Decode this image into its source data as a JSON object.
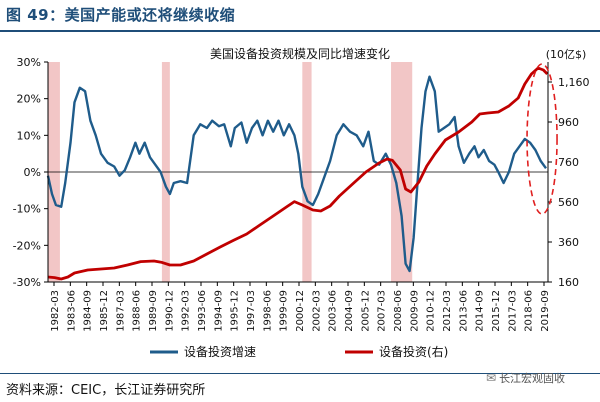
{
  "figure": {
    "title": "图 49：美国产能或还将继续收缩",
    "source": "资料来源：CEIC，长江证券研究所",
    "watermark": "长江宏观固收",
    "watermark_icon": "wechat-icon"
  },
  "chart_data": {
    "type": "line",
    "title": "美国设备投资规模及同比增速变化",
    "x_tick_labels": [
      "1982-03",
      "1983-06",
      "1984-09",
      "1985-12",
      "1987-03",
      "1988-06",
      "1989-09",
      "1990-12",
      "1992-03",
      "1993-06",
      "1994-09",
      "1995-12",
      "1997-03",
      "1998-06",
      "1999-09",
      "2000-12",
      "2002-03",
      "2003-06",
      "2004-09",
      "2005-12",
      "2007-03",
      "2008-06",
      "2009-09",
      "2010-12",
      "2012-03",
      "2013-06",
      "2014-09",
      "2015-12",
      "2017-03",
      "2018-06",
      "2019-09"
    ],
    "x_range": [
      1982.0,
      2019.75
    ],
    "left_axis": {
      "ticks": [
        "-30%",
        "-20%",
        "-10%",
        "0%",
        "10%",
        "20%",
        "30%"
      ],
      "values": [
        -30,
        -20,
        -10,
        0,
        10,
        20,
        30
      ],
      "range": [
        -30,
        30
      ]
    },
    "right_axis": {
      "unit": "(10亿$)",
      "ticks": [
        "160",
        "360",
        "560",
        "760",
        "960",
        "1,160"
      ],
      "values": [
        160,
        360,
        560,
        760,
        960,
        1160
      ],
      "range": [
        160,
        1260
      ]
    },
    "recession_bands": [
      [
        1982.0,
        1982.9
      ],
      [
        1990.6,
        1991.2
      ],
      [
        2001.2,
        2001.9
      ],
      [
        2007.9,
        2009.5
      ]
    ],
    "series": [
      {
        "name": "设备投资增速",
        "color": "#1f5c8b",
        "axis": "left",
        "points": [
          [
            1982.0,
            -1
          ],
          [
            1982.3,
            -6
          ],
          [
            1982.6,
            -9
          ],
          [
            1983.0,
            -9.5
          ],
          [
            1983.3,
            -3
          ],
          [
            1983.7,
            8
          ],
          [
            1984.0,
            19
          ],
          [
            1984.4,
            23
          ],
          [
            1984.8,
            22
          ],
          [
            1985.2,
            14
          ],
          [
            1985.6,
            10
          ],
          [
            1986.0,
            5
          ],
          [
            1986.5,
            2.5
          ],
          [
            1987.0,
            1.5
          ],
          [
            1987.4,
            -1
          ],
          [
            1987.8,
            0.5
          ],
          [
            1988.2,
            4
          ],
          [
            1988.6,
            8
          ],
          [
            1988.9,
            5
          ],
          [
            1989.3,
            8
          ],
          [
            1989.7,
            4
          ],
          [
            1990.1,
            2
          ],
          [
            1990.5,
            0
          ],
          [
            1990.9,
            -4
          ],
          [
            1991.2,
            -6
          ],
          [
            1991.5,
            -3
          ],
          [
            1992.0,
            -2.5
          ],
          [
            1992.5,
            -3
          ],
          [
            1993.0,
            10
          ],
          [
            1993.5,
            13
          ],
          [
            1994.0,
            12
          ],
          [
            1994.4,
            14
          ],
          [
            1994.9,
            12.5
          ],
          [
            1995.3,
            13
          ],
          [
            1995.8,
            7
          ],
          [
            1996.1,
            12
          ],
          [
            1996.6,
            13.5
          ],
          [
            1997.0,
            8
          ],
          [
            1997.4,
            12
          ],
          [
            1997.8,
            14
          ],
          [
            1998.2,
            10
          ],
          [
            1998.6,
            14
          ],
          [
            1999.0,
            11
          ],
          [
            1999.4,
            14
          ],
          [
            1999.8,
            10
          ],
          [
            2000.2,
            13
          ],
          [
            2000.6,
            10
          ],
          [
            2000.9,
            5
          ],
          [
            2001.2,
            -4
          ],
          [
            2001.6,
            -8
          ],
          [
            2002.0,
            -9
          ],
          [
            2002.4,
            -6
          ],
          [
            2002.8,
            -2
          ],
          [
            2003.3,
            3
          ],
          [
            2003.8,
            10
          ],
          [
            2004.3,
            13
          ],
          [
            2004.8,
            11
          ],
          [
            2005.3,
            10
          ],
          [
            2005.8,
            7
          ],
          [
            2006.2,
            11
          ],
          [
            2006.6,
            3
          ],
          [
            2007.0,
            2
          ],
          [
            2007.5,
            5
          ],
          [
            2007.9,
            2
          ],
          [
            2008.3,
            -3
          ],
          [
            2008.7,
            -12
          ],
          [
            2009.0,
            -25
          ],
          [
            2009.3,
            -27
          ],
          [
            2009.6,
            -18
          ],
          [
            2009.9,
            -3
          ],
          [
            2010.2,
            12
          ],
          [
            2010.5,
            22
          ],
          [
            2010.8,
            26
          ],
          [
            2011.2,
            22
          ],
          [
            2011.5,
            11
          ],
          [
            2011.9,
            12
          ],
          [
            2012.3,
            13
          ],
          [
            2012.7,
            15
          ],
          [
            2013.0,
            7
          ],
          [
            2013.4,
            2.5
          ],
          [
            2013.8,
            5
          ],
          [
            2014.2,
            7
          ],
          [
            2014.5,
            4
          ],
          [
            2014.9,
            6
          ],
          [
            2015.3,
            3
          ],
          [
            2015.7,
            2
          ],
          [
            2016.0,
            0
          ],
          [
            2016.4,
            -3
          ],
          [
            2016.8,
            0
          ],
          [
            2017.2,
            5
          ],
          [
            2017.6,
            7
          ],
          [
            2018.0,
            9
          ],
          [
            2018.4,
            8
          ],
          [
            2018.8,
            6
          ],
          [
            2019.2,
            3
          ],
          [
            2019.6,
            1
          ]
        ]
      },
      {
        "name": "设备投资(右)",
        "color": "#c00000",
        "axis": "right",
        "points": [
          [
            1982.0,
            185
          ],
          [
            1982.5,
            182
          ],
          [
            1983.0,
            175
          ],
          [
            1983.5,
            185
          ],
          [
            1984.0,
            205
          ],
          [
            1985.0,
            220
          ],
          [
            1986.0,
            225
          ],
          [
            1987.0,
            230
          ],
          [
            1988.0,
            245
          ],
          [
            1989.0,
            262
          ],
          [
            1990.0,
            265
          ],
          [
            1990.6,
            258
          ],
          [
            1991.2,
            245
          ],
          [
            1992.0,
            245
          ],
          [
            1993.0,
            265
          ],
          [
            1994.0,
            300
          ],
          [
            1995.0,
            335
          ],
          [
            1996.0,
            368
          ],
          [
            1997.0,
            400
          ],
          [
            1998.0,
            445
          ],
          [
            1999.0,
            490
          ],
          [
            2000.0,
            535
          ],
          [
            2000.6,
            562
          ],
          [
            2001.2,
            545
          ],
          [
            2002.0,
            520
          ],
          [
            2002.6,
            515
          ],
          [
            2003.3,
            540
          ],
          [
            2004.0,
            590
          ],
          [
            2005.0,
            650
          ],
          [
            2006.0,
            710
          ],
          [
            2007.0,
            755
          ],
          [
            2007.6,
            775
          ],
          [
            2008.0,
            768
          ],
          [
            2008.6,
            720
          ],
          [
            2009.0,
            625
          ],
          [
            2009.4,
            610
          ],
          [
            2010.0,
            660
          ],
          [
            2010.6,
            740
          ],
          [
            2011.2,
            800
          ],
          [
            2012.0,
            870
          ],
          [
            2013.0,
            910
          ],
          [
            2014.0,
            960
          ],
          [
            2014.6,
            1000
          ],
          [
            2015.2,
            1005
          ],
          [
            2016.0,
            1010
          ],
          [
            2016.8,
            1040
          ],
          [
            2017.5,
            1080
          ],
          [
            2018.0,
            1150
          ],
          [
            2018.5,
            1200
          ],
          [
            2019.0,
            1230
          ],
          [
            2019.4,
            1220
          ],
          [
            2019.7,
            1200
          ]
        ]
      }
    ],
    "annotation": {
      "type": "dashed-ellipse",
      "color": "#e02020",
      "x_center": 2019.3,
      "y_center_pct": 9
    },
    "legend_position": "bottom",
    "grid": false
  }
}
